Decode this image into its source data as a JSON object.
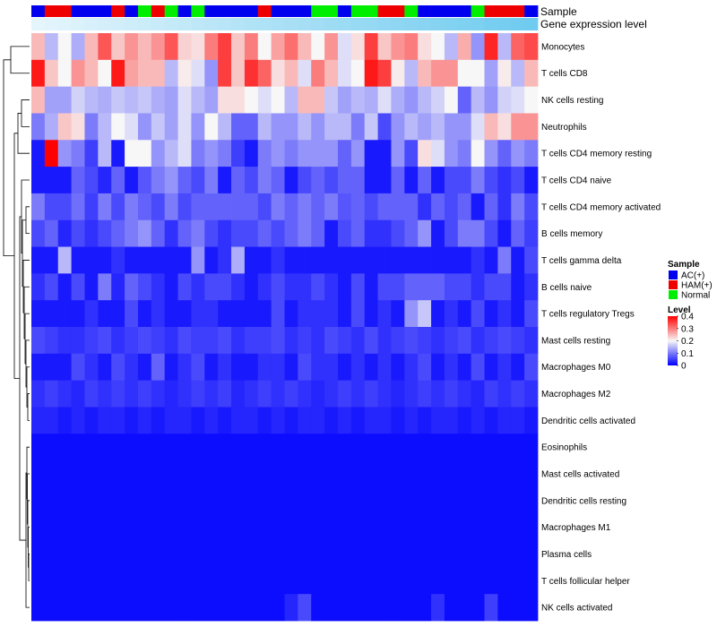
{
  "chart_data": {
    "type": "heatmap",
    "annotation_labels": [
      "Sample",
      "Gene expression level"
    ],
    "row_labels": [
      "Monocytes",
      "T cells CD8",
      "NK cells resting",
      "Neutrophils",
      "T cells CD4 memory resting",
      "T cells CD4 naive",
      "T cells CD4 memory activated",
      "B cells memory",
      "T cells gamma delta",
      "B cells naive",
      "T cells regulatory  Tregs",
      "Mast cells resting",
      "Macrophages M0",
      "Macrophages M2",
      "Dendritic cells activated",
      "Eosinophils",
      "Mast cells activated",
      "Dendritic cells resting",
      "Macrophages M1",
      "Plasma cells",
      "T cells follicular helper",
      "NK cells activated"
    ],
    "sample_groups": [
      "AC",
      "HAM",
      "HAM",
      "AC",
      "AC",
      "AC",
      "HAM",
      "AC",
      "Normal",
      "HAM",
      "Normal",
      "AC",
      "Normal",
      "AC",
      "AC",
      "AC",
      "AC",
      "HAM",
      "AC",
      "AC",
      "AC",
      "Normal",
      "Normal",
      "AC",
      "Normal",
      "Normal",
      "HAM",
      "HAM",
      "Normal",
      "AC",
      "AC",
      "AC",
      "AC",
      "Normal",
      "HAM",
      "HAM",
      "HAM",
      "AC"
    ],
    "gene_expression_values": [
      0.3,
      0.31,
      0.32,
      0.33,
      0.34,
      0.35,
      0.36,
      0.37,
      0.38,
      0.39,
      0.4,
      0.41,
      0.42,
      0.43,
      0.44,
      0.45,
      0.46,
      0.47,
      0.48,
      0.49,
      0.5,
      0.51,
      0.52,
      0.53,
      0.54,
      0.55,
      0.56,
      0.57,
      0.58,
      0.59,
      0.6,
      0.61,
      0.62,
      0.63,
      0.64,
      0.65,
      0.66,
      0.67
    ],
    "values": [
      [
        0.25,
        0.15,
        0.2,
        0.14,
        0.25,
        0.33,
        0.24,
        0.28,
        0.25,
        0.28,
        0.33,
        0.23,
        0.22,
        0.3,
        0.35,
        0.24,
        0.3,
        0.2,
        0.27,
        0.31,
        0.25,
        0.2,
        0.28,
        0.18,
        0.22,
        0.35,
        0.24,
        0.28,
        0.3,
        0.22,
        0.2,
        0.15,
        0.26,
        0.12,
        0.37,
        0.15,
        0.32,
        0.34
      ],
      [
        0.38,
        0.24,
        0.2,
        0.28,
        0.25,
        0.2,
        0.38,
        0.27,
        0.25,
        0.25,
        0.15,
        0.21,
        0.18,
        0.12,
        0.35,
        0.24,
        0.36,
        0.32,
        0.22,
        0.25,
        0.18,
        0.3,
        0.25,
        0.18,
        0.2,
        0.38,
        0.35,
        0.21,
        0.15,
        0.25,
        0.28,
        0.28,
        0.2,
        0.2,
        0.13,
        0.21,
        0.15,
        0.25
      ],
      [
        0.25,
        0.13,
        0.13,
        0.17,
        0.15,
        0.14,
        0.16,
        0.15,
        0.16,
        0.14,
        0.13,
        0.18,
        0.15,
        0.13,
        0.22,
        0.22,
        0.2,
        0.18,
        0.2,
        0.15,
        0.25,
        0.25,
        0.16,
        0.13,
        0.15,
        0.14,
        0.18,
        0.14,
        0.12,
        0.15,
        0.17,
        0.2,
        0.08,
        0.15,
        0.12,
        0.17,
        0.18,
        0.2
      ],
      [
        0.1,
        0.14,
        0.24,
        0.22,
        0.1,
        0.15,
        0.2,
        0.18,
        0.12,
        0.16,
        0.13,
        0.18,
        0.12,
        0.2,
        0.15,
        0.08,
        0.08,
        0.15,
        0.12,
        0.12,
        0.15,
        0.12,
        0.15,
        0.15,
        0.1,
        0.16,
        0.06,
        0.12,
        0.15,
        0.13,
        0.15,
        0.12,
        0.12,
        0.18,
        0.25,
        0.22,
        0.28,
        0.28
      ],
      [
        0.02,
        0.42,
        0.12,
        0.1,
        0.05,
        0.15,
        0.02,
        0.2,
        0.2,
        0.12,
        0.15,
        0.18,
        0.1,
        0.12,
        0.1,
        0.05,
        0.02,
        0.1,
        0.12,
        0.1,
        0.12,
        0.12,
        0.12,
        0.08,
        0.12,
        0.02,
        0.02,
        0.12,
        0.06,
        0.22,
        0.18,
        0.12,
        0.1,
        0.2,
        0.12,
        0.08,
        0.12,
        0.1
      ],
      [
        0.02,
        0.02,
        0.02,
        0.08,
        0.06,
        0.03,
        0.08,
        0.02,
        0.07,
        0.1,
        0.12,
        0.08,
        0.06,
        0.1,
        0.02,
        0.08,
        0.06,
        0.1,
        0.08,
        0.02,
        0.06,
        0.08,
        0.06,
        0.08,
        0.08,
        0.02,
        0.02,
        0.08,
        0.02,
        0.08,
        0.02,
        0.06,
        0.06,
        0.1,
        0.06,
        0.04,
        0.06,
        0.02
      ],
      [
        0.1,
        0.06,
        0.06,
        0.09,
        0.05,
        0.1,
        0.06,
        0.1,
        0.08,
        0.06,
        0.1,
        0.06,
        0.08,
        0.08,
        0.08,
        0.08,
        0.08,
        0.06,
        0.1,
        0.08,
        0.1,
        0.08,
        0.1,
        0.07,
        0.08,
        0.06,
        0.08,
        0.08,
        0.08,
        0.04,
        0.08,
        0.06,
        0.08,
        0.02,
        0.08,
        0.04,
        0.1,
        0.06
      ],
      [
        0.06,
        0.08,
        0.03,
        0.06,
        0.04,
        0.06,
        0.08,
        0.1,
        0.12,
        0.08,
        0.04,
        0.08,
        0.1,
        0.06,
        0.04,
        0.06,
        0.06,
        0.08,
        0.06,
        0.08,
        0.1,
        0.08,
        0.02,
        0.06,
        0.08,
        0.04,
        0.04,
        0.06,
        0.08,
        0.12,
        0.02,
        0.06,
        0.1,
        0.1,
        0.06,
        0.02,
        0.08,
        0.05
      ],
      [
        0.02,
        0.02,
        0.15,
        0.02,
        0.02,
        0.02,
        0.04,
        0.02,
        0.02,
        0.02,
        0.02,
        0.02,
        0.12,
        0.02,
        0.04,
        0.14,
        0.02,
        0.02,
        0.04,
        0.02,
        0.02,
        0.02,
        0.02,
        0.02,
        0.02,
        0.02,
        0.02,
        0.02,
        0.02,
        0.02,
        0.02,
        0.02,
        0.02,
        0.04,
        0.02,
        0.1,
        0.02,
        0.06
      ],
      [
        0.04,
        0.06,
        0.02,
        0.06,
        0.02,
        0.1,
        0.03,
        0.08,
        0.06,
        0.04,
        0.02,
        0.06,
        0.04,
        0.06,
        0.06,
        0.04,
        0.02,
        0.04,
        0.06,
        0.04,
        0.04,
        0.06,
        0.04,
        0.02,
        0.06,
        0.02,
        0.06,
        0.06,
        0.08,
        0.08,
        0.08,
        0.06,
        0.06,
        0.04,
        0.06,
        0.06,
        0.02,
        0.04
      ],
      [
        0.02,
        0.02,
        0.02,
        0.02,
        0.04,
        0.02,
        0.02,
        0.06,
        0.02,
        0.04,
        0.02,
        0.02,
        0.04,
        0.04,
        0.02,
        0.02,
        0.02,
        0.02,
        0.06,
        0.02,
        0.04,
        0.04,
        0.04,
        0.02,
        0.06,
        0.02,
        0.04,
        0.02,
        0.12,
        0.16,
        0.02,
        0.04,
        0.02,
        0.06,
        0.02,
        0.04,
        0.02,
        0.06
      ],
      [
        0.06,
        0.05,
        0.04,
        0.04,
        0.05,
        0.06,
        0.04,
        0.05,
        0.06,
        0.05,
        0.04,
        0.06,
        0.05,
        0.05,
        0.06,
        0.04,
        0.05,
        0.05,
        0.06,
        0.04,
        0.05,
        0.04,
        0.06,
        0.05,
        0.04,
        0.06,
        0.04,
        0.05,
        0.06,
        0.05,
        0.04,
        0.05,
        0.06,
        0.04,
        0.05,
        0.06,
        0.05,
        0.04
      ],
      [
        0.02,
        0.02,
        0.02,
        0.06,
        0.04,
        0.02,
        0.06,
        0.04,
        0.02,
        0.08,
        0.02,
        0.04,
        0.06,
        0.02,
        0.04,
        0.02,
        0.02,
        0.04,
        0.04,
        0.02,
        0.06,
        0.04,
        0.04,
        0.02,
        0.04,
        0.02,
        0.04,
        0.02,
        0.04,
        0.06,
        0.02,
        0.04,
        0.02,
        0.06,
        0.02,
        0.04,
        0.02,
        0.06
      ],
      [
        0.04,
        0.05,
        0.04,
        0.03,
        0.05,
        0.04,
        0.05,
        0.04,
        0.05,
        0.04,
        0.03,
        0.04,
        0.05,
        0.04,
        0.05,
        0.03,
        0.04,
        0.05,
        0.04,
        0.05,
        0.04,
        0.03,
        0.04,
        0.05,
        0.04,
        0.05,
        0.04,
        0.03,
        0.04,
        0.05,
        0.04,
        0.05,
        0.04,
        0.03,
        0.05,
        0.04,
        0.05,
        0.04
      ],
      [
        0.03,
        0.03,
        0.02,
        0.03,
        0.02,
        0.03,
        0.03,
        0.02,
        0.03,
        0.02,
        0.03,
        0.03,
        0.02,
        0.03,
        0.02,
        0.03,
        0.03,
        0.02,
        0.03,
        0.02,
        0.03,
        0.03,
        0.02,
        0.03,
        0.02,
        0.03,
        0.03,
        0.02,
        0.03,
        0.02,
        0.03,
        0.03,
        0.02,
        0.03,
        0.02,
        0.03,
        0.03,
        0.02
      ],
      [
        0.01,
        0.01,
        0.01,
        0.01,
        0.01,
        0.01,
        0.01,
        0.01,
        0.01,
        0.01,
        0.01,
        0.01,
        0.01,
        0.01,
        0.01,
        0.01,
        0.01,
        0.01,
        0.01,
        0.01,
        0.01,
        0.01,
        0.01,
        0.01,
        0.01,
        0.01,
        0.01,
        0.01,
        0.01,
        0.01,
        0.01,
        0.01,
        0.01,
        0.01,
        0.01,
        0.01,
        0.01,
        0.01
      ],
      [
        0.01,
        0.01,
        0.01,
        0.01,
        0.01,
        0.01,
        0.01,
        0.01,
        0.01,
        0.01,
        0.01,
        0.01,
        0.01,
        0.01,
        0.01,
        0.01,
        0.01,
        0.01,
        0.01,
        0.01,
        0.01,
        0.01,
        0.01,
        0.01,
        0.01,
        0.01,
        0.01,
        0.01,
        0.01,
        0.01,
        0.01,
        0.01,
        0.01,
        0.01,
        0.01,
        0.01,
        0.01,
        0.01
      ],
      [
        0.01,
        0.01,
        0.01,
        0.01,
        0.01,
        0.01,
        0.01,
        0.01,
        0.01,
        0.01,
        0.01,
        0.01,
        0.01,
        0.01,
        0.01,
        0.01,
        0.01,
        0.01,
        0.01,
        0.01,
        0.01,
        0.01,
        0.01,
        0.01,
        0.01,
        0.01,
        0.01,
        0.01,
        0.01,
        0.01,
        0.01,
        0.01,
        0.01,
        0.01,
        0.01,
        0.01,
        0.01,
        0.01
      ],
      [
        0.01,
        0.01,
        0.01,
        0.01,
        0.01,
        0.01,
        0.01,
        0.01,
        0.01,
        0.01,
        0.01,
        0.01,
        0.01,
        0.01,
        0.01,
        0.01,
        0.01,
        0.01,
        0.01,
        0.01,
        0.01,
        0.01,
        0.01,
        0.01,
        0.01,
        0.01,
        0.01,
        0.01,
        0.01,
        0.01,
        0.01,
        0.01,
        0.01,
        0.01,
        0.01,
        0.01,
        0.01,
        0.01
      ],
      [
        0.01,
        0.01,
        0.01,
        0.01,
        0.01,
        0.01,
        0.01,
        0.01,
        0.01,
        0.01,
        0.01,
        0.01,
        0.01,
        0.01,
        0.01,
        0.01,
        0.01,
        0.01,
        0.01,
        0.01,
        0.01,
        0.01,
        0.01,
        0.01,
        0.01,
        0.01,
        0.01,
        0.01,
        0.01,
        0.01,
        0.01,
        0.01,
        0.01,
        0.01,
        0.01,
        0.01,
        0.01,
        0.01
      ],
      [
        0.01,
        0.01,
        0.01,
        0.01,
        0.01,
        0.01,
        0.01,
        0.01,
        0.01,
        0.01,
        0.01,
        0.01,
        0.01,
        0.01,
        0.01,
        0.01,
        0.01,
        0.01,
        0.01,
        0.01,
        0.01,
        0.01,
        0.01,
        0.01,
        0.01,
        0.01,
        0.01,
        0.01,
        0.01,
        0.01,
        0.01,
        0.01,
        0.01,
        0.01,
        0.01,
        0.01,
        0.01,
        0.01
      ],
      [
        0.01,
        0.01,
        0.01,
        0.01,
        0.01,
        0.01,
        0.01,
        0.01,
        0.01,
        0.01,
        0.01,
        0.01,
        0.01,
        0.01,
        0.01,
        0.01,
        0.01,
        0.01,
        0.01,
        0.03,
        0.06,
        0.01,
        0.01,
        0.01,
        0.01,
        0.01,
        0.01,
        0.01,
        0.01,
        0.01,
        0.04,
        0.01,
        0.01,
        0.01,
        0.05,
        0.01,
        0.01,
        0.01
      ]
    ],
    "value_range": [
      0,
      0.4
    ],
    "legend": {
      "sample_title": "Sample",
      "sample_entries": [
        {
          "label": "AC(+)",
          "key": "AC",
          "color": "#0000EE"
        },
        {
          "label": "HAM(+)",
          "key": "HAM",
          "color": "#EE0000"
        },
        {
          "label": "Normal",
          "key": "Normal",
          "color": "#00EE00"
        }
      ],
      "level_title": "Level",
      "level_ticks": [
        "0.4",
        "0.3",
        "0.2",
        "0.1",
        "0"
      ],
      "level_tick_values": [
        0.4,
        0.3,
        0.2,
        0.1,
        0
      ],
      "placement": "right"
    },
    "colors": {
      "low": "#0000FF",
      "mid": "#F7F7F7",
      "high": "#FF0000",
      "expr_low": "#E4F5FC",
      "expr_high": "#6FCBEF"
    }
  }
}
